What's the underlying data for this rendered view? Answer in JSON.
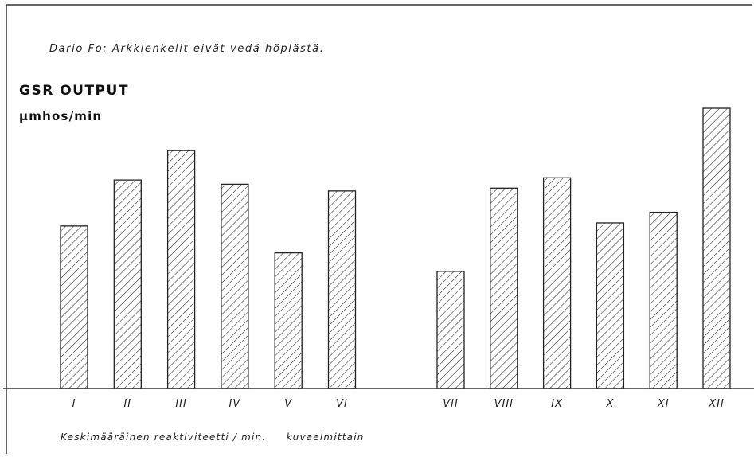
{
  "title_prefix": "Dario Fo:",
  "title_rest": " Arkkienkelit eivät vedä höplästä.",
  "chart_data": {
    "type": "bar",
    "ylabel": "GSR OUTPUT",
    "yunit": "μmhos/min",
    "xlabel": "Keskimääräinen reaktiviteetti / min.",
    "xlabel_suffix": "kuvaelmittain",
    "categories": [
      "I",
      "II",
      "III",
      "IV",
      "V",
      "VI",
      "VII",
      "VIII",
      "IX",
      "X",
      "XI",
      "XII"
    ],
    "values": [
      0.58,
      0.744,
      0.849,
      0.729,
      0.484,
      0.705,
      0.418,
      0.715,
      0.752,
      0.591,
      0.629,
      1.0
    ],
    "ylim": [
      0,
      1.1
    ],
    "grid": false,
    "legend": "none",
    "group_gap_after": 5,
    "fill": "hatched"
  }
}
